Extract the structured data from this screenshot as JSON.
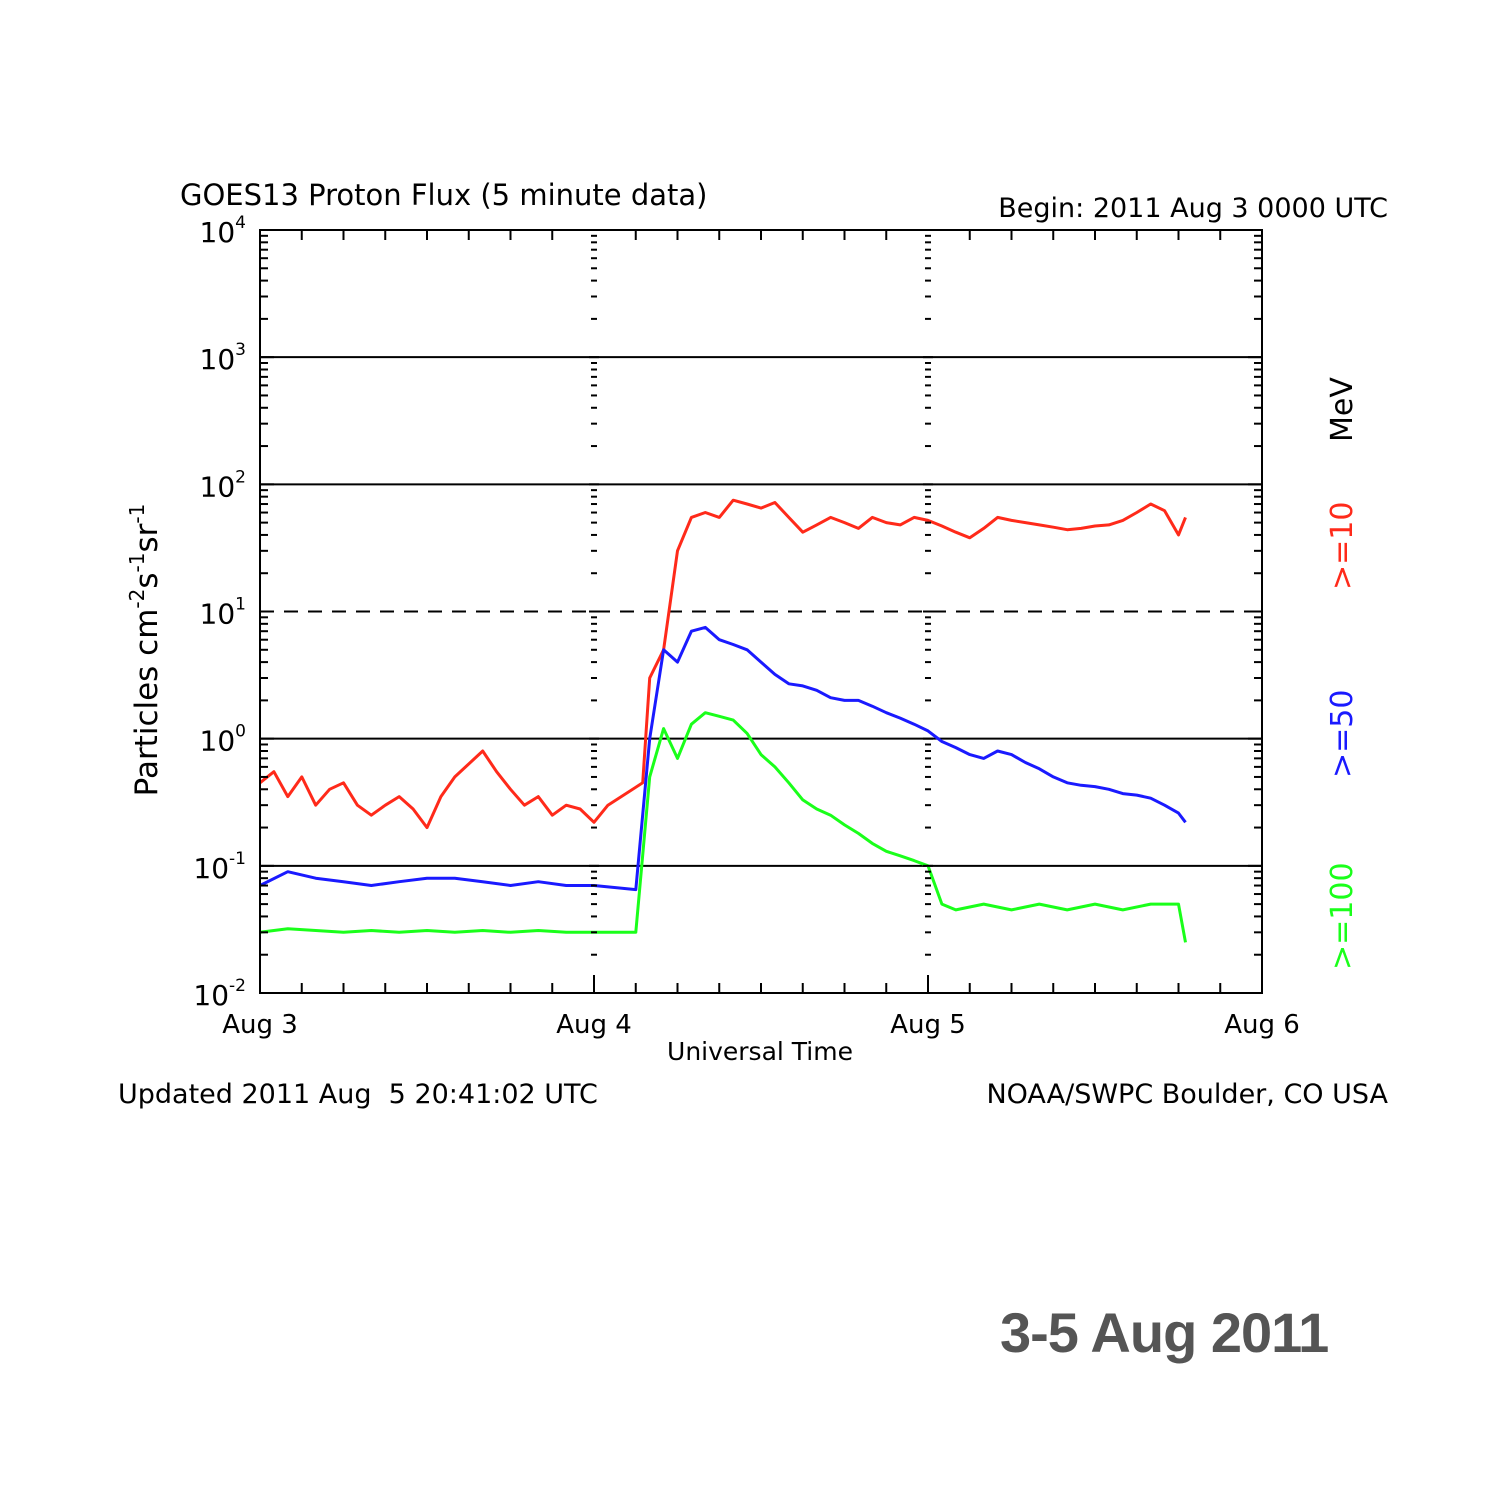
{
  "chart_data": {
    "type": "line",
    "title": "GOES13 Proton Flux (5 minute data)",
    "begin_label": "Begin: 2011 Aug 3 0000 UTC",
    "xlabel": "Universal Time",
    "ylabel_parts": [
      "Particles cm",
      "-2",
      "s",
      "-1",
      "sr",
      "-1"
    ],
    "y_scale": "log",
    "ylim": [
      0.01,
      10000
    ],
    "y_ticks": [
      {
        "value": 10000,
        "base": "10",
        "exp": "4"
      },
      {
        "value": 1000,
        "base": "10",
        "exp": "3"
      },
      {
        "value": 100,
        "base": "10",
        "exp": "2"
      },
      {
        "value": 10,
        "base": "10",
        "exp": "1"
      },
      {
        "value": 1,
        "base": "10",
        "exp": "0"
      },
      {
        "value": 0.1,
        "base": "10",
        "exp": "-1"
      },
      {
        "value": 0.01,
        "base": "10",
        "exp": "-2"
      }
    ],
    "xlim_hours": [
      0,
      72
    ],
    "x_ticks": [
      {
        "hour": 0,
        "label": "Aug 3"
      },
      {
        "hour": 24,
        "label": "Aug 4"
      },
      {
        "hour": 48,
        "label": "Aug 5"
      },
      {
        "hour": 72,
        "label": "Aug 6"
      }
    ],
    "gridlines": [
      1000,
      100,
      1,
      0.1
    ],
    "threshold_dashed": 10,
    "legend_unit": "MeV",
    "series": [
      {
        "name": ">=10",
        "color": "#ff2a1a",
        "points": [
          [
            0,
            0.45
          ],
          [
            1,
            0.55
          ],
          [
            2,
            0.35
          ],
          [
            3,
            0.5
          ],
          [
            4,
            0.3
          ],
          [
            5,
            0.4
          ],
          [
            6,
            0.45
          ],
          [
            7,
            0.3
          ],
          [
            8,
            0.25
          ],
          [
            9,
            0.3
          ],
          [
            10,
            0.35
          ],
          [
            11,
            0.28
          ],
          [
            12,
            0.2
          ],
          [
            13,
            0.35
          ],
          [
            14,
            0.5
          ],
          [
            16,
            0.8
          ],
          [
            17,
            0.55
          ],
          [
            18,
            0.4
          ],
          [
            19,
            0.3
          ],
          [
            20,
            0.35
          ],
          [
            21,
            0.25
          ],
          [
            22,
            0.3
          ],
          [
            23,
            0.28
          ],
          [
            24,
            0.22
          ],
          [
            25,
            0.3
          ],
          [
            27.5,
            0.45
          ],
          [
            28,
            3
          ],
          [
            29,
            5
          ],
          [
            30,
            30
          ],
          [
            31,
            55
          ],
          [
            32,
            60
          ],
          [
            33,
            55
          ],
          [
            34,
            75
          ],
          [
            35,
            70
          ],
          [
            36,
            65
          ],
          [
            37,
            72
          ],
          [
            38,
            55
          ],
          [
            39,
            42
          ],
          [
            40,
            48
          ],
          [
            41,
            55
          ],
          [
            42,
            50
          ],
          [
            43,
            45
          ],
          [
            44,
            55
          ],
          [
            45,
            50
          ],
          [
            46,
            48
          ],
          [
            47,
            55
          ],
          [
            48,
            52
          ],
          [
            49,
            47
          ],
          [
            50,
            42
          ],
          [
            51,
            38
          ],
          [
            52,
            45
          ],
          [
            53,
            55
          ],
          [
            54,
            52
          ],
          [
            55,
            50
          ],
          [
            56,
            48
          ],
          [
            57,
            46
          ],
          [
            58,
            44
          ],
          [
            59,
            45
          ],
          [
            60,
            47
          ],
          [
            61,
            48
          ],
          [
            62,
            52
          ],
          [
            63,
            60
          ],
          [
            64,
            70
          ],
          [
            65,
            62
          ],
          [
            66,
            40
          ],
          [
            66.5,
            55
          ]
        ]
      },
      {
        "name": ">=50",
        "color": "#1a1aff",
        "points": [
          [
            0,
            0.07
          ],
          [
            2,
            0.09
          ],
          [
            4,
            0.08
          ],
          [
            6,
            0.075
          ],
          [
            8,
            0.07
          ],
          [
            10,
            0.075
          ],
          [
            12,
            0.08
          ],
          [
            14,
            0.08
          ],
          [
            16,
            0.075
          ],
          [
            18,
            0.07
          ],
          [
            20,
            0.075
          ],
          [
            22,
            0.07
          ],
          [
            24,
            0.07
          ],
          [
            27,
            0.065
          ],
          [
            28,
            1
          ],
          [
            29,
            5
          ],
          [
            30,
            4
          ],
          [
            31,
            7
          ],
          [
            32,
            7.5
          ],
          [
            33,
            6
          ],
          [
            34,
            5.5
          ],
          [
            35,
            5
          ],
          [
            36,
            4
          ],
          [
            37,
            3.2
          ],
          [
            38,
            2.7
          ],
          [
            39,
            2.6
          ],
          [
            40,
            2.4
          ],
          [
            41,
            2.1
          ],
          [
            42,
            2
          ],
          [
            43,
            2
          ],
          [
            44,
            1.8
          ],
          [
            45,
            1.6
          ],
          [
            46,
            1.45
          ],
          [
            47,
            1.3
          ],
          [
            48,
            1.15
          ],
          [
            49,
            0.95
          ],
          [
            50,
            0.85
          ],
          [
            51,
            0.75
          ],
          [
            52,
            0.7
          ],
          [
            53,
            0.8
          ],
          [
            54,
            0.75
          ],
          [
            55,
            0.65
          ],
          [
            56,
            0.58
          ],
          [
            57,
            0.5
          ],
          [
            58,
            0.45
          ],
          [
            59,
            0.43
          ],
          [
            60,
            0.42
          ],
          [
            61,
            0.4
          ],
          [
            62,
            0.37
          ],
          [
            63,
            0.36
          ],
          [
            64,
            0.34
          ],
          [
            65,
            0.3
          ],
          [
            66,
            0.26
          ],
          [
            66.5,
            0.22
          ]
        ]
      },
      {
        "name": ">=100",
        "color": "#1aff1a",
        "points": [
          [
            0,
            0.03
          ],
          [
            2,
            0.032
          ],
          [
            4,
            0.031
          ],
          [
            6,
            0.03
          ],
          [
            8,
            0.031
          ],
          [
            10,
            0.03
          ],
          [
            12,
            0.031
          ],
          [
            14,
            0.03
          ],
          [
            16,
            0.031
          ],
          [
            18,
            0.03
          ],
          [
            20,
            0.031
          ],
          [
            22,
            0.03
          ],
          [
            24,
            0.03
          ],
          [
            27,
            0.03
          ],
          [
            28,
            0.5
          ],
          [
            29,
            1.2
          ],
          [
            30,
            0.7
          ],
          [
            31,
            1.3
          ],
          [
            32,
            1.6
          ],
          [
            33,
            1.5
          ],
          [
            34,
            1.4
          ],
          [
            35,
            1.1
          ],
          [
            36,
            0.75
          ],
          [
            37,
            0.6
          ],
          [
            38,
            0.45
          ],
          [
            39,
            0.33
          ],
          [
            40,
            0.28
          ],
          [
            41,
            0.25
          ],
          [
            42,
            0.21
          ],
          [
            43,
            0.18
          ],
          [
            44,
            0.15
          ],
          [
            45,
            0.13
          ],
          [
            46,
            0.12
          ],
          [
            47,
            0.11
          ],
          [
            48,
            0.1
          ],
          [
            49,
            0.05
          ],
          [
            50,
            0.045
          ],
          [
            52,
            0.05
          ],
          [
            54,
            0.045
          ],
          [
            56,
            0.05
          ],
          [
            58,
            0.045
          ],
          [
            60,
            0.05
          ],
          [
            62,
            0.045
          ],
          [
            64,
            0.05
          ],
          [
            66,
            0.05
          ],
          [
            66.5,
            0.025
          ]
        ]
      }
    ]
  },
  "footer_left": "Updated 2011 Aug  5 20:41:02 UTC",
  "footer_right": "NOAA/SWPC Boulder, CO USA",
  "caption": "3-5 Aug 2011"
}
